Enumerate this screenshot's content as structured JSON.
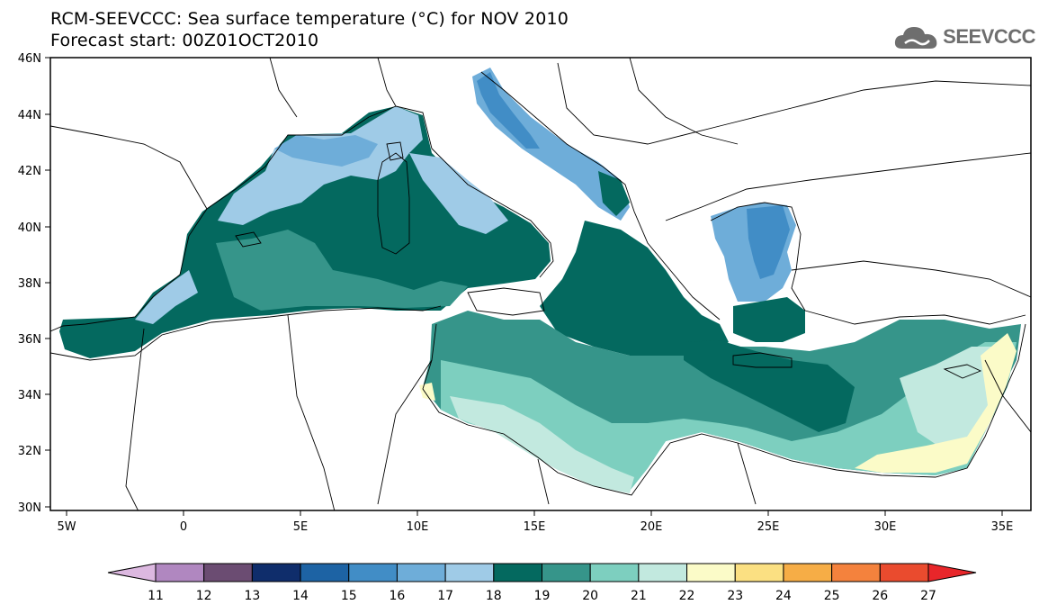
{
  "title_line1": "RCM-SEEVCCC: Sea surface temperature (°C) for NOV 2010",
  "title_line2": "Forecast start: 00Z01OCT2010",
  "logo": {
    "text": "SEEVCCC",
    "icon": "cloud-icon"
  },
  "map": {
    "lat_ticks": [
      "46N",
      "44N",
      "42N",
      "40N",
      "38N",
      "36N",
      "34N",
      "32N",
      "30N"
    ],
    "lon_ticks": [
      "5W",
      "0",
      "5E",
      "10E",
      "15E",
      "20E",
      "25E",
      "30E",
      "35E"
    ]
  },
  "colorbar": {
    "labels": [
      "11",
      "12",
      "13",
      "14",
      "15",
      "16",
      "17",
      "18",
      "19",
      "20",
      "21",
      "22",
      "23",
      "24",
      "25",
      "26",
      "27"
    ],
    "under_color": "#dcb8e0",
    "over_color": "#e8262a",
    "colors": [
      "#b087c0",
      "#6b4c72",
      "#0f2d6b",
      "#1d63a4",
      "#418dc6",
      "#6eadd9",
      "#9fcbe7",
      "#04695f",
      "#36958a",
      "#7dcfbf",
      "#c2e9df",
      "#fbfbc8",
      "#fbe082",
      "#f6ad46",
      "#f4823d",
      "#ea4b2e"
    ]
  }
}
